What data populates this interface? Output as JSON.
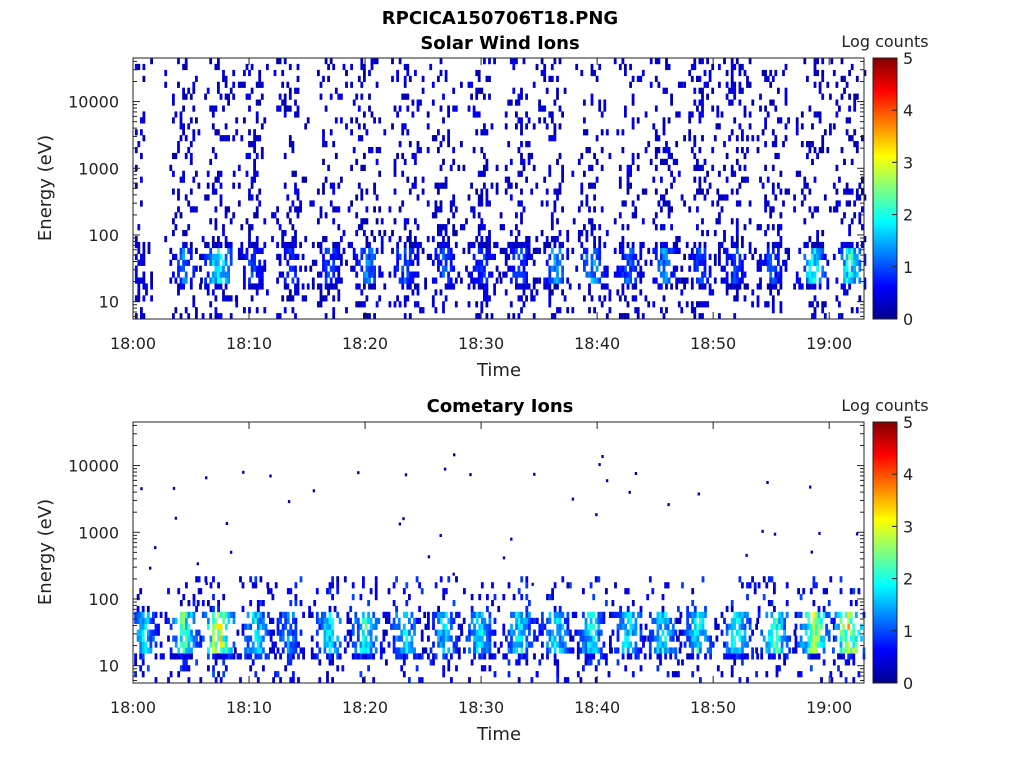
{
  "figure": {
    "title": "RPCICA150706T18.PNG",
    "colormap": [
      "#00008f",
      "#0000ff",
      "#00ffff",
      "#ffff00",
      "#ff0000",
      "#800000"
    ]
  },
  "chart_data": [
    {
      "type": "heatmap",
      "title": "Solar Wind Ions",
      "xlabel": "Time",
      "ylabel": "Energy (eV)",
      "x_ticks": [
        "18:00",
        "18:10",
        "18:20",
        "18:30",
        "18:40",
        "18:50",
        "19:00"
      ],
      "x_tick_minutes": [
        0,
        10,
        20,
        30,
        40,
        50,
        60
      ],
      "xlim_minutes": [
        0,
        63
      ],
      "y_scale": "log",
      "y_ticks": [
        "10",
        "100",
        "1000",
        "10000"
      ],
      "y_tick_values": [
        10,
        100,
        1000,
        10000
      ],
      "ylim": [
        5.5,
        45000
      ],
      "colorbar": {
        "label": "Log counts",
        "ticks": [
          "0",
          "1",
          "2",
          "3",
          "4",
          "5"
        ],
        "range": [
          0,
          5
        ]
      },
      "bursts_minutes": [
        0,
        4.3,
        7.3,
        10.2,
        13.5,
        16.8,
        20.1,
        23.4,
        26.7,
        30,
        33.2,
        36.3,
        39.5,
        42.6,
        45.7,
        48.8,
        51.8,
        54.9,
        58.5,
        61.7
      ],
      "peak_log_counts": [
        0.8,
        1.6,
        2.5,
        1.2,
        1.1,
        1.2,
        1.6,
        1.4,
        1.3,
        1.2,
        1.3,
        1.8,
        1.8,
        1.4,
        1.7,
        1.2,
        1.2,
        1.3,
        2.4,
        2.6
      ],
      "peak_energy_ev": 35
    },
    {
      "type": "heatmap",
      "title": "Cometary Ions",
      "xlabel": "Time",
      "ylabel": "Energy (eV)",
      "x_ticks": [
        "18:00",
        "18:10",
        "18:20",
        "18:30",
        "18:40",
        "18:50",
        "19:00"
      ],
      "x_tick_minutes": [
        0,
        10,
        20,
        30,
        40,
        50,
        60
      ],
      "xlim_minutes": [
        0,
        63
      ],
      "y_scale": "log",
      "y_ticks": [
        "10",
        "100",
        "1000",
        "10000"
      ],
      "y_tick_values": [
        10,
        100,
        1000,
        10000
      ],
      "ylim": [
        5.5,
        45000
      ],
      "colorbar": {
        "label": "Log counts",
        "ticks": [
          "0",
          "1",
          "2",
          "3",
          "4",
          "5"
        ],
        "range": [
          0,
          5
        ]
      },
      "bursts_minutes": [
        0.8,
        4.3,
        7.3,
        10.5,
        13.3,
        16.9,
        20.0,
        23.3,
        26.7,
        29.8,
        33.2,
        36.3,
        39.4,
        42.6,
        45.6,
        48.6,
        52.0,
        55.2,
        58.6,
        61.6
      ],
      "peak_log_counts": [
        2.2,
        2.8,
        3.8,
        2.2,
        1.7,
        2.3,
        2.5,
        2.3,
        2.1,
        2.3,
        2.4,
        2.4,
        2.3,
        2.3,
        2.4,
        2.3,
        2.5,
        2.8,
        3.4,
        3.8
      ],
      "peak_energy_ev": 30
    }
  ]
}
